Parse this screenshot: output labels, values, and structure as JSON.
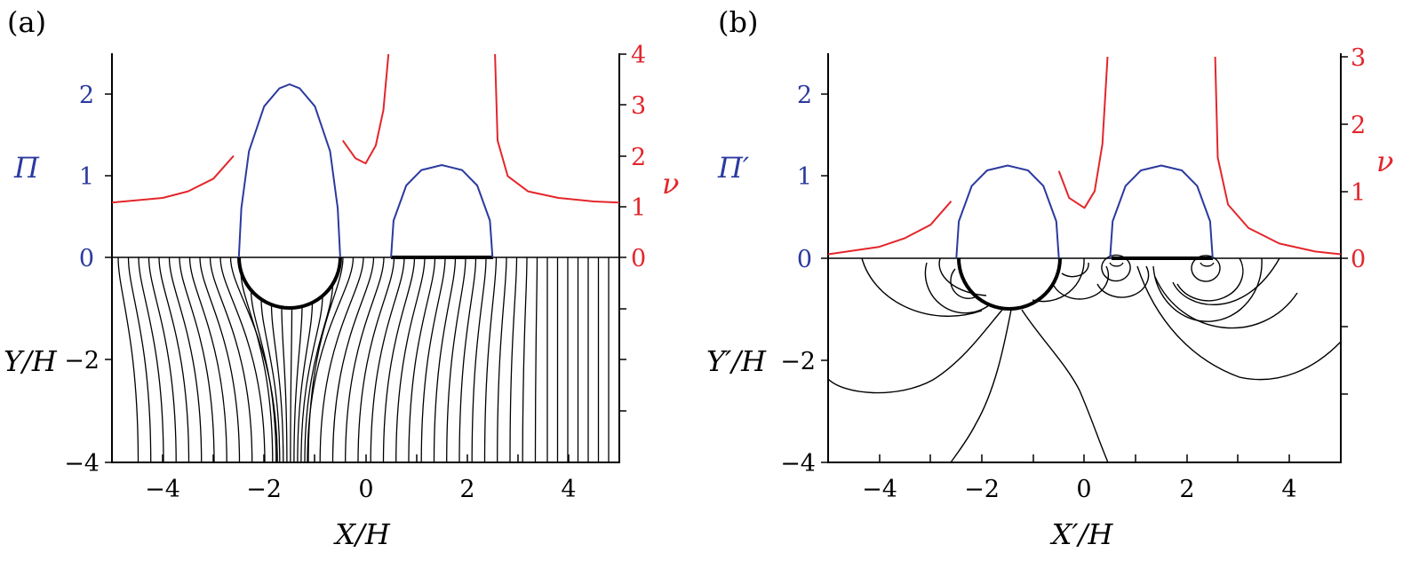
{
  "figure": {
    "panels": [
      {
        "label": "(a)",
        "xlabel": "X/H",
        "ylabel_left": "Y/H",
        "ylabel_left_upper": "Π",
        "ylabel_right": "ν",
        "x_ticks": [
          "−4",
          "−2",
          "0",
          "2",
          "4"
        ],
        "y_ticks_left": [
          "2",
          "1",
          "0",
          "−2",
          "−4"
        ],
        "y_ticks_right": [
          "4",
          "3",
          "2",
          "1",
          "0"
        ]
      },
      {
        "label": "(b)",
        "xlabel": "X′/H",
        "ylabel_left": "Y′/H",
        "ylabel_left_upper": "Π′",
        "ylabel_right": "ν",
        "x_ticks": [
          "−4",
          "−2",
          "0",
          "2",
          "4"
        ],
        "y_ticks_left": [
          "2",
          "1",
          "0",
          "−2",
          "−4"
        ],
        "y_ticks_right": [
          "3",
          "2",
          "1",
          "0"
        ]
      }
    ],
    "colors": {
      "pi_curve": "#2b3a9e",
      "nu_curve": "#e3262b",
      "streamline": "#000000",
      "pi_text": "#2b3a9e",
      "nu_text": "#e3262b"
    }
  },
  "chart_data": [
    {
      "type": "line",
      "title": "(a)",
      "xlabel": "X/H",
      "ylabel": "Y/H",
      "xlim": [
        -5,
        5
      ],
      "ylim_lower": [
        -4,
        0
      ],
      "ylim_upper_left": [
        0,
        2.5
      ],
      "ylim_upper_right": [
        0,
        4
      ],
      "series": [
        {
          "name": "Π",
          "axis": "left",
          "x": [
            -2.5,
            -2.45,
            -2.3,
            -2.0,
            -1.7,
            -1.5,
            -1.3,
            -1.0,
            -0.7,
            -0.55,
            -0.5
          ],
          "y": [
            0,
            0.6,
            1.3,
            1.85,
            2.07,
            2.12,
            2.07,
            1.85,
            1.3,
            0.6,
            0
          ]
        },
        {
          "name": "Π",
          "axis": "left",
          "x": [
            0.5,
            0.55,
            0.8,
            1.1,
            1.5,
            1.9,
            2.2,
            2.45,
            2.5
          ],
          "y": [
            0,
            0.45,
            0.88,
            1.07,
            1.13,
            1.07,
            0.88,
            0.45,
            0
          ]
        },
        {
          "name": "ν",
          "axis": "right",
          "x": [
            -5,
            -4,
            -3.5,
            -3.0,
            -2.6
          ],
          "y": [
            1.08,
            1.17,
            1.3,
            1.55,
            2.0
          ]
        },
        {
          "name": "ν",
          "axis": "right",
          "x": [
            -0.45,
            -0.2,
            0.0,
            0.2,
            0.35,
            0.45
          ],
          "y": [
            2.3,
            1.95,
            1.85,
            2.2,
            2.9,
            4.0
          ]
        },
        {
          "name": "ν",
          "axis": "right",
          "x": [
            2.55,
            2.6,
            2.8,
            3.2,
            3.8,
            4.5,
            5.0
          ],
          "y": [
            4.0,
            2.3,
            1.6,
            1.3,
            1.17,
            1.1,
            1.08
          ]
        }
      ],
      "y_ticks_right": [
        0,
        1,
        2,
        3,
        4
      ]
    },
    {
      "type": "line",
      "title": "(b)",
      "xlabel": "X′/H",
      "ylabel": "Y′/H",
      "xlim": [
        -5,
        5
      ],
      "ylim_lower": [
        -4,
        0
      ],
      "ylim_upper_left": [
        0,
        2.5
      ],
      "ylim_upper_right": [
        0,
        3
      ],
      "series": [
        {
          "name": "Π′",
          "axis": "left",
          "x": [
            -2.5,
            -2.45,
            -2.2,
            -1.9,
            -1.5,
            -1.1,
            -0.8,
            -0.55,
            -0.5
          ],
          "y": [
            0,
            0.45,
            0.88,
            1.07,
            1.13,
            1.07,
            0.88,
            0.45,
            0
          ]
        },
        {
          "name": "Π′",
          "axis": "left",
          "x": [
            0.5,
            0.55,
            0.8,
            1.1,
            1.5,
            1.9,
            2.2,
            2.45,
            2.5
          ],
          "y": [
            0,
            0.45,
            0.88,
            1.07,
            1.13,
            1.07,
            0.88,
            0.45,
            0
          ]
        },
        {
          "name": "ν",
          "axis": "right",
          "x": [
            -5,
            -4,
            -3.5,
            -3.0,
            -2.6
          ],
          "y": [
            0.06,
            0.17,
            0.3,
            0.5,
            0.85
          ]
        },
        {
          "name": "ν",
          "axis": "right",
          "x": [
            -0.5,
            -0.3,
            0.0,
            0.2,
            0.35,
            0.45
          ],
          "y": [
            1.3,
            0.9,
            0.75,
            1.0,
            1.7,
            3.0
          ]
        },
        {
          "name": "ν",
          "axis": "right",
          "x": [
            2.55,
            2.6,
            2.8,
            3.2,
            3.8,
            4.5,
            5.0
          ],
          "y": [
            3.0,
            1.5,
            0.8,
            0.45,
            0.22,
            0.1,
            0.06
          ]
        }
      ],
      "y_ticks_right": [
        0,
        1,
        2,
        3
      ]
    }
  ]
}
